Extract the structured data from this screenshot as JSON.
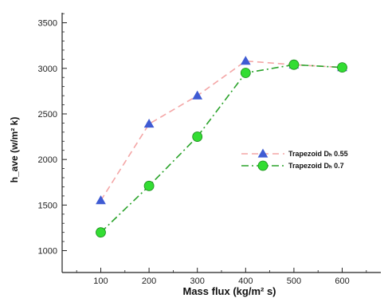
{
  "chart_data": {
    "type": "line",
    "xlabel": "Mass flux (kg/m² s)",
    "ylabel": "h_ave (w/m² k)",
    "xlim": [
      20,
      680
    ],
    "ylim": [
      760,
      3610
    ],
    "x_ticks": [
      100,
      200,
      300,
      400,
      500,
      600
    ],
    "y_ticks": [
      1000,
      1500,
      2000,
      2500,
      3000,
      3500
    ],
    "grid": false,
    "legend_position": "center-right",
    "series": [
      {
        "name": "Trapezoid Dₕ 0.55",
        "color": "#f4a6a6",
        "marker": "triangle",
        "marker_color": "#3f5bd3",
        "line_style": "dashed",
        "x": [
          100,
          200,
          300,
          400,
          500,
          600
        ],
        "y": [
          1550,
          2390,
          2700,
          3080,
          3040,
          3010
        ]
      },
      {
        "name": "Trapezoid Dₕ 0.7",
        "color": "#2aa32a",
        "marker": "circle",
        "marker_color": "#33dd33",
        "line_style": "dash-dot",
        "x": [
          100,
          200,
          300,
          400,
          500,
          600
        ],
        "y": [
          1200,
          1710,
          2250,
          2950,
          3040,
          3010
        ]
      }
    ]
  }
}
